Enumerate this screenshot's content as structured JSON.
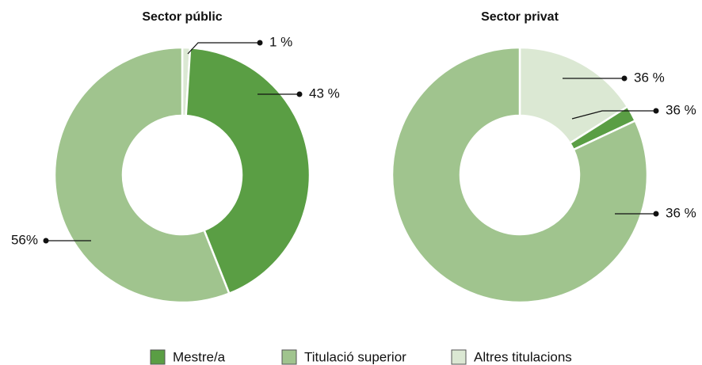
{
  "chart_data": [
    {
      "type": "donut",
      "title": "Sector públic",
      "categories": [
        "Altres titulacions",
        "Mestre/a",
        "Titulació superior"
      ],
      "values": [
        1,
        43,
        56
      ],
      "value_labels": [
        "1 %",
        "43 %",
        "56%"
      ],
      "colors": [
        "#dbe8d3",
        "#5a9e44",
        "#a0c48e"
      ]
    },
    {
      "type": "donut",
      "title": "Sector privat",
      "categories": [
        "Altres titulacions",
        "Mestre/a",
        "Titulació superior"
      ],
      "values": [
        16,
        2,
        82
      ],
      "annotations": [
        "36 %",
        "36 %",
        "36 %"
      ],
      "colors": [
        "#dbe8d3",
        "#5a9e44",
        "#a0c48e"
      ]
    }
  ],
  "legend": [
    {
      "name": "Mestre/a",
      "color": "#5a9e44"
    },
    {
      "name": "Titulació superior",
      "color": "#a0c48e"
    },
    {
      "name": "Altres titulacions",
      "color": "#dbe8d3"
    }
  ]
}
